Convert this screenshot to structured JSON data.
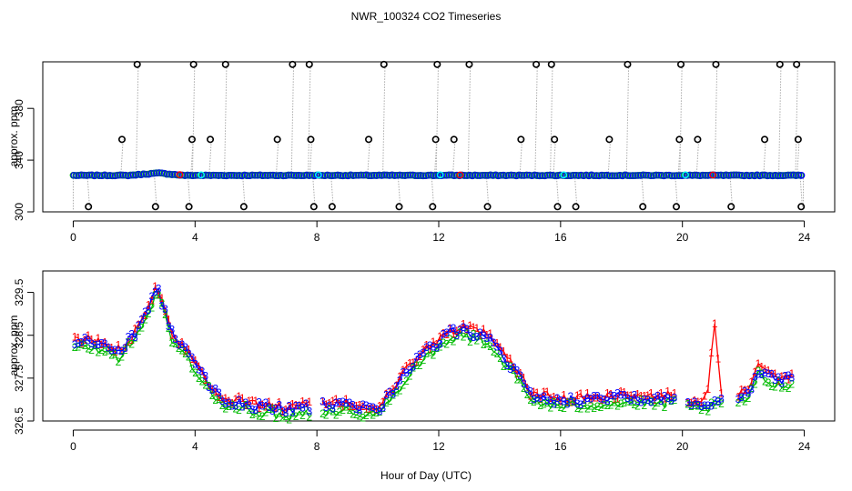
{
  "chart_data": [
    {
      "type": "scatter",
      "title": "NWR_100324  CO2 Timeseries",
      "xlabel": "",
      "ylabel": "approx. ppm",
      "xlim": [
        -1,
        25
      ],
      "ylim": [
        300,
        416
      ],
      "xticks": [
        "0",
        "4",
        "8",
        "12",
        "16",
        "20",
        "24"
      ],
      "yticks": [
        "300",
        "340",
        "380"
      ],
      "baseline_ppm": 328.2,
      "baseline_hump": {
        "start_hr": 1.8,
        "peak_hr": 2.8,
        "end_hr": 3.6,
        "peak_ppm": 330.0
      },
      "outlier_markers": [
        {
          "x": 0.5,
          "y": 304
        },
        {
          "x": 1.6,
          "y": 356
        },
        {
          "x": 2.1,
          "y": 414
        },
        {
          "x": 2.7,
          "y": 304
        },
        {
          "x": 3.8,
          "y": 304
        },
        {
          "x": 3.9,
          "y": 356
        },
        {
          "x": 3.95,
          "y": 414
        },
        {
          "x": 4.5,
          "y": 356
        },
        {
          "x": 5.0,
          "y": 414
        },
        {
          "x": 5.6,
          "y": 304
        },
        {
          "x": 6.7,
          "y": 356
        },
        {
          "x": 7.2,
          "y": 414
        },
        {
          "x": 7.75,
          "y": 414
        },
        {
          "x": 7.8,
          "y": 356
        },
        {
          "x": 7.9,
          "y": 304
        },
        {
          "x": 8.5,
          "y": 304
        },
        {
          "x": 9.7,
          "y": 356
        },
        {
          "x": 10.2,
          "y": 414
        },
        {
          "x": 10.7,
          "y": 304
        },
        {
          "x": 11.8,
          "y": 304
        },
        {
          "x": 11.9,
          "y": 356
        },
        {
          "x": 11.95,
          "y": 414
        },
        {
          "x": 12.5,
          "y": 356
        },
        {
          "x": 13.0,
          "y": 414
        },
        {
          "x": 13.6,
          "y": 304
        },
        {
          "x": 14.7,
          "y": 356
        },
        {
          "x": 15.2,
          "y": 414
        },
        {
          "x": 15.7,
          "y": 414
        },
        {
          "x": 15.8,
          "y": 356
        },
        {
          "x": 15.9,
          "y": 304
        },
        {
          "x": 16.5,
          "y": 304
        },
        {
          "x": 17.6,
          "y": 356
        },
        {
          "x": 18.2,
          "y": 414
        },
        {
          "x": 18.7,
          "y": 304
        },
        {
          "x": 19.8,
          "y": 304
        },
        {
          "x": 19.9,
          "y": 356
        },
        {
          "x": 19.95,
          "y": 414
        },
        {
          "x": 20.5,
          "y": 356
        },
        {
          "x": 21.1,
          "y": 414
        },
        {
          "x": 21.6,
          "y": 304
        },
        {
          "x": 22.7,
          "y": 356
        },
        {
          "x": 23.2,
          "y": 414
        },
        {
          "x": 23.75,
          "y": 414
        },
        {
          "x": 23.8,
          "y": 356
        },
        {
          "x": 23.9,
          "y": 304
        }
      ],
      "colors": {
        "series1": "#ff0000",
        "series2": "#00bb00",
        "series3": "#0000ff",
        "highlight": "#00ffff",
        "outline": "#000000",
        "gap_line": "#aaaaaa"
      }
    },
    {
      "type": "line",
      "title": "",
      "xlabel": "Hour of Day (UTC)",
      "ylabel": "approx. ppm",
      "xlim": [
        -1,
        25
      ],
      "ylim": [
        326.5,
        330.0
      ],
      "xticks": [
        "0",
        "4",
        "8",
        "12",
        "16",
        "20",
        "24"
      ],
      "yticks": [
        "326.5",
        "327.5",
        "328.5",
        "329.5"
      ],
      "profile": {
        "x": [
          0,
          0.5,
          1.0,
          1.5,
          2.0,
          2.5,
          2.75,
          3.0,
          3.3,
          3.7,
          4.2,
          4.6,
          5.0,
          6.0,
          7.0,
          7.5,
          8.0,
          9.0,
          10.0,
          10.5,
          11.0,
          11.5,
          12.0,
          12.3,
          12.7,
          13.2,
          13.6,
          14.0,
          14.6,
          15.0,
          16.0,
          17.0,
          18.0,
          19.0,
          19.6,
          20.0,
          20.6,
          21.0,
          21.3,
          21.8,
          22.2,
          22.5,
          23.0,
          23.6
        ],
        "y": [
          328.3,
          328.35,
          328.25,
          328.1,
          328.5,
          329.2,
          329.6,
          329.1,
          328.4,
          328.15,
          327.6,
          327.2,
          326.95,
          326.85,
          326.75,
          326.8,
          326.85,
          326.85,
          326.75,
          327.2,
          327.7,
          328.1,
          328.3,
          328.55,
          328.6,
          328.55,
          328.45,
          328.1,
          327.6,
          327.1,
          326.95,
          327.0,
          327.05,
          327.0,
          327.05,
          326.95,
          326.9,
          326.95,
          327.0,
          327.0,
          327.2,
          327.7,
          327.45,
          327.5
        ]
      },
      "gap_hours": [
        [
          7.8,
          8.1
        ],
        [
          19.75,
          20.1
        ],
        [
          21.35,
          21.75
        ]
      ],
      "series": [
        {
          "name": "1",
          "color": "#ff0000",
          "offset": 0.06,
          "spike": {
            "x_start": 20.8,
            "x_end": 21.3,
            "peak_x": 21.05,
            "peak_y": 328.85
          }
        },
        {
          "name": "2",
          "color": "#00bb00",
          "offset": -0.12
        },
        {
          "name": "3",
          "color": "#0000ff",
          "offset": 0.0
        }
      ]
    }
  ]
}
